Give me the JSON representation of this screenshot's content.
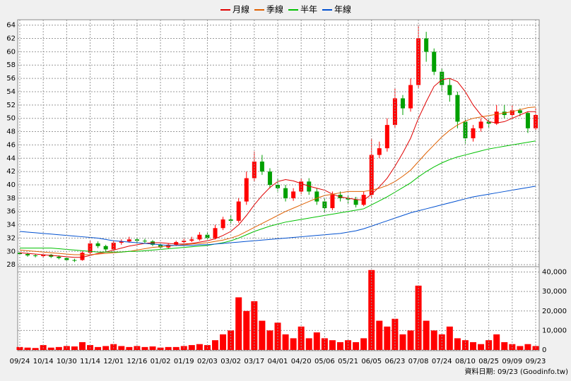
{
  "chart_data": [
    {
      "type": "candlestick",
      "legend": "top",
      "up_color": "#ff0000",
      "down_color": "#00a000",
      "grid": true,
      "ylim": [
        27.7,
        64.6
      ],
      "yticks": [
        28,
        30,
        32,
        34,
        36,
        38,
        40,
        42,
        44,
        46,
        48,
        50,
        52,
        54,
        56,
        58,
        60,
        62,
        64
      ],
      "open": [
        29.8,
        29.6,
        29.4,
        29.3,
        29.5,
        29.2,
        29.0,
        28.7,
        28.7,
        29.8,
        31.2,
        30.8,
        30.3,
        31.3,
        31.5,
        31.8,
        31.6,
        31.5,
        31.0,
        30.6,
        31.0,
        31.4,
        31.6,
        31.8,
        32.5,
        32.0,
        33.5,
        34.8,
        34.6,
        37.5,
        41.0,
        43.5,
        42.0,
        40.0,
        39.5,
        38.0,
        39.0,
        40.5,
        39.0,
        37.5,
        36.5,
        38.5,
        38.0,
        37.8,
        37.0,
        38.5,
        44.5,
        45.5,
        49.0,
        53.0,
        51.5,
        55.0,
        62.0,
        60.0,
        57.0,
        55.0,
        53.5,
        49.5,
        47.0,
        48.5,
        49.5,
        49.2,
        51.0,
        50.5,
        51.2,
        50.8,
        48.5
      ],
      "high": [
        30.0,
        29.8,
        29.6,
        29.7,
        29.6,
        29.4,
        29.1,
        28.9,
        30.0,
        31.6,
        31.5,
        31.0,
        31.6,
        31.8,
        32.2,
        32.0,
        31.9,
        31.7,
        31.2,
        31.2,
        31.6,
        31.9,
        32.2,
        32.9,
        32.8,
        34.0,
        35.2,
        35.5,
        38.0,
        42.0,
        45.0,
        44.5,
        42.5,
        41.0,
        40.0,
        39.5,
        41.0,
        41.0,
        39.5,
        38.0,
        39.0,
        39.0,
        38.5,
        38.2,
        39.0,
        47.0,
        46.5,
        50.0,
        54.5,
        53.5,
        56.0,
        64.0,
        63.0,
        60.5,
        57.5,
        56.0,
        54.0,
        50.0,
        49.0,
        50.0,
        50.0,
        52.0,
        52.0,
        52.0,
        51.5,
        51.0,
        51.5
      ],
      "low": [
        29.4,
        29.2,
        29.1,
        29.1,
        29.0,
        28.8,
        28.5,
        28.4,
        28.6,
        29.6,
        30.5,
        30.0,
        30.1,
        31.0,
        31.3,
        31.3,
        31.2,
        30.8,
        30.4,
        30.4,
        30.8,
        31.2,
        31.4,
        31.6,
        31.8,
        31.8,
        33.2,
        34.2,
        34.3,
        37.0,
        40.5,
        41.5,
        39.5,
        39.0,
        37.5,
        37.6,
        38.6,
        38.5,
        37.0,
        35.8,
        36.2,
        37.5,
        37.2,
        36.6,
        36.8,
        38.0,
        44.0,
        45.0,
        48.5,
        50.5,
        51.0,
        54.5,
        58.5,
        56.5,
        54.0,
        52.5,
        48.5,
        46.2,
        46.5,
        48.0,
        48.5,
        49.0,
        50.0,
        50.0,
        50.3,
        47.8,
        48.2
      ],
      "close": [
        29.6,
        29.4,
        29.3,
        29.5,
        29.2,
        29.0,
        28.7,
        28.6,
        29.8,
        31.2,
        30.8,
        30.3,
        31.3,
        31.5,
        31.8,
        31.6,
        31.5,
        31.0,
        30.6,
        31.0,
        31.4,
        31.6,
        31.8,
        32.5,
        32.0,
        33.5,
        34.8,
        34.6,
        37.5,
        41.0,
        43.5,
        42.0,
        40.0,
        39.5,
        38.0,
        39.0,
        40.5,
        39.0,
        37.5,
        36.5,
        38.5,
        38.0,
        37.8,
        37.0,
        38.5,
        44.5,
        45.5,
        49.0,
        53.0,
        51.5,
        55.0,
        62.0,
        60.0,
        57.0,
        55.0,
        53.5,
        49.5,
        47.0,
        48.5,
        49.5,
        49.2,
        51.0,
        50.5,
        51.2,
        50.8,
        48.5,
        50.5
      ],
      "series": [
        {
          "name": "月線",
          "color": "#e00000",
          "values": [
            29.8,
            29.7,
            29.6,
            29.5,
            29.4,
            29.3,
            29.2,
            29.1,
            29.1,
            29.4,
            29.7,
            29.9,
            30.2,
            30.5,
            30.8,
            31.0,
            31.2,
            31.3,
            31.3,
            31.2,
            31.1,
            31.1,
            31.2,
            31.4,
            31.6,
            31.9,
            32.4,
            33.0,
            34.0,
            35.4,
            37.0,
            38.4,
            39.6,
            40.5,
            40.8,
            40.6,
            40.2,
            39.8,
            39.5,
            39.2,
            38.6,
            38.2,
            38.0,
            37.8,
            37.7,
            38.6,
            39.7,
            41.0,
            42.8,
            44.8,
            47.0,
            50.0,
            52.5,
            54.8,
            55.8,
            56.0,
            55.5,
            54.0,
            52.0,
            50.5,
            49.5,
            49.3,
            49.5,
            50.0,
            50.5,
            51.0,
            51.0
          ]
        },
        {
          "name": "季線",
          "color": "#e06000",
          "values": [
            30.2,
            30.1,
            30.0,
            29.9,
            29.8,
            29.7,
            29.6,
            29.5,
            29.5,
            29.5,
            29.6,
            29.7,
            29.8,
            29.9,
            30.0,
            30.2,
            30.4,
            30.6,
            30.7,
            30.8,
            30.9,
            31.0,
            31.1,
            31.2,
            31.3,
            31.5,
            31.7,
            32.0,
            32.4,
            33.0,
            33.6,
            34.2,
            34.8,
            35.4,
            36.0,
            36.5,
            37.0,
            37.5,
            38.0,
            38.4,
            38.6,
            38.8,
            39.0,
            39.0,
            39.0,
            39.2,
            39.5,
            39.9,
            40.5,
            41.3,
            42.2,
            43.5,
            44.8,
            46.0,
            47.2,
            48.2,
            49.0,
            49.6,
            50.0,
            50.2,
            50.4,
            50.6,
            50.8,
            51.0,
            51.3,
            51.6,
            51.7
          ]
        },
        {
          "name": "半年",
          "color": "#00c000",
          "values": [
            30.5,
            30.5,
            30.5,
            30.5,
            30.5,
            30.4,
            30.3,
            30.2,
            30.1,
            30.0,
            29.9,
            29.9,
            29.9,
            29.9,
            30.0,
            30.0,
            30.1,
            30.2,
            30.3,
            30.4,
            30.5,
            30.6,
            30.7,
            30.8,
            30.9,
            31.1,
            31.3,
            31.6,
            32.0,
            32.5,
            33.0,
            33.4,
            33.8,
            34.1,
            34.4,
            34.6,
            34.8,
            35.0,
            35.2,
            35.4,
            35.6,
            35.8,
            36.0,
            36.2,
            36.4,
            37.0,
            37.6,
            38.2,
            38.9,
            39.6,
            40.3,
            41.2,
            42.0,
            42.7,
            43.3,
            43.8,
            44.2,
            44.5,
            44.8,
            45.1,
            45.4,
            45.6,
            45.8,
            46.0,
            46.2,
            46.4,
            46.6
          ]
        },
        {
          "name": "年線",
          "color": "#0050d0",
          "values": [
            33.0,
            32.9,
            32.8,
            32.7,
            32.6,
            32.5,
            32.4,
            32.3,
            32.2,
            32.1,
            32.0,
            31.8,
            31.6,
            31.5,
            31.4,
            31.3,
            31.2,
            31.1,
            31.0,
            30.9,
            30.9,
            30.9,
            30.9,
            31.0,
            31.0,
            31.1,
            31.2,
            31.3,
            31.4,
            31.5,
            31.6,
            31.7,
            31.8,
            31.9,
            32.0,
            32.1,
            32.2,
            32.3,
            32.4,
            32.5,
            32.6,
            32.7,
            32.9,
            33.1,
            33.4,
            33.8,
            34.2,
            34.6,
            35.0,
            35.4,
            35.8,
            36.1,
            36.4,
            36.7,
            37.0,
            37.3,
            37.6,
            37.9,
            38.2,
            38.4,
            38.6,
            38.8,
            39.0,
            39.2,
            39.4,
            39.6,
            39.8
          ]
        }
      ]
    },
    {
      "type": "bar",
      "color": "#ff0000",
      "grid": true,
      "ylim": [
        0,
        42000
      ],
      "yticks": [
        0,
        {
          "value": 10000,
          "label": "10,000"
        },
        {
          "value": 20000,
          "label": "20,000"
        },
        {
          "value": 30000,
          "label": "30,000"
        },
        {
          "value": 40000,
          "label": "40,000"
        }
      ],
      "categories": [
        "09/24",
        null,
        null,
        "10/14",
        null,
        null,
        "10/30",
        null,
        null,
        "11/14",
        null,
        null,
        "12/01",
        null,
        null,
        "12/16",
        null,
        null,
        "01/02",
        null,
        null,
        "01/19",
        null,
        null,
        "02/03",
        null,
        null,
        "03/02",
        null,
        null,
        "03/17",
        null,
        null,
        "04/01",
        null,
        null,
        "04/20",
        null,
        null,
        "05/06",
        null,
        null,
        "05/21",
        null,
        null,
        "06/05",
        null,
        null,
        "06/23",
        null,
        null,
        "07/08",
        null,
        null,
        "07/24",
        null,
        null,
        "08/10",
        null,
        null,
        "08/25",
        null,
        null,
        "09/09",
        null,
        null,
        "09/23"
      ],
      "values": [
        1500,
        1200,
        1000,
        2500,
        1200,
        1500,
        2000,
        1800,
        4000,
        2500,
        1500,
        2000,
        3000,
        2000,
        1500,
        2000,
        1500,
        1800,
        1200,
        1500,
        1500,
        2000,
        2500,
        3000,
        2500,
        5000,
        8000,
        10000,
        27000,
        20000,
        25000,
        15000,
        10000,
        14000,
        8000,
        6000,
        12000,
        6000,
        9000,
        6000,
        5000,
        4000,
        5000,
        4000,
        6000,
        41000,
        15000,
        12000,
        16000,
        8000,
        10000,
        33000,
        15000,
        10000,
        8000,
        12000,
        6000,
        5000,
        4000,
        3000,
        5000,
        8000,
        4000,
        3000,
        2000,
        3000,
        2000
      ]
    }
  ],
  "footer": "資料日期: 09/23 (Goodinfo.tw)"
}
